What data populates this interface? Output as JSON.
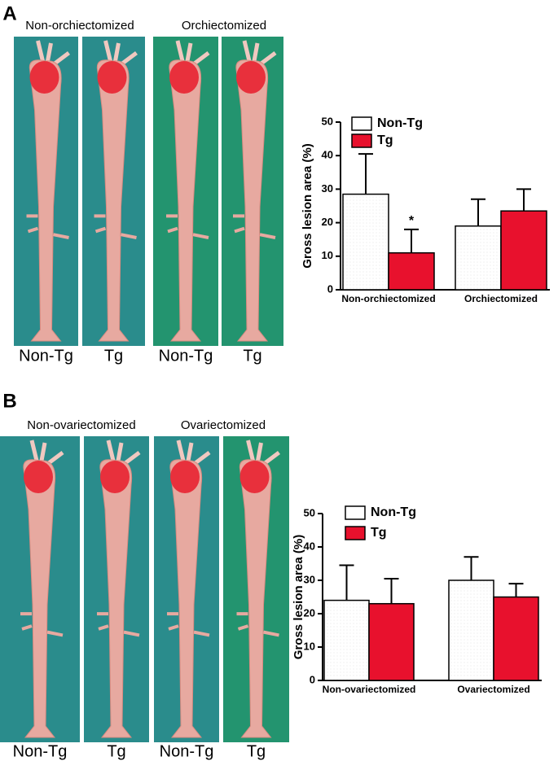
{
  "panels": [
    {
      "label": "A",
      "groups": [
        "Non-orchiectomized",
        "Orchiectomized"
      ],
      "photos": [
        "Non-Tg",
        "Tg",
        "Non-Tg",
        "Tg"
      ]
    },
    {
      "label": "B",
      "groups": [
        "Non-ovariectomized",
        "Ovariectomized"
      ],
      "photos": [
        "Non-Tg",
        "Tg",
        "Non-Tg",
        "Tg"
      ]
    }
  ],
  "chart_data": [
    {
      "type": "bar",
      "y_label": "Gross lesion area (%)",
      "categories": [
        "Non-orchiectomized",
        "Orchiectomized"
      ],
      "series": [
        {
          "name": "Non-Tg",
          "color": "#ffffff",
          "values": [
            28.5,
            19
          ],
          "errors": [
            12,
            8
          ]
        },
        {
          "name": "Tg",
          "color": "#e8112d",
          "values": [
            11,
            23.5
          ],
          "errors": [
            7,
            6.5
          ]
        }
      ],
      "annotations": [
        {
          "text": "*",
          "series": "Tg",
          "category": "Non-orchiectomized"
        }
      ],
      "ylim": [
        0,
        50
      ],
      "yticks": [
        0,
        10,
        20,
        30,
        40,
        50
      ]
    },
    {
      "type": "bar",
      "y_label": "Gross lesion area (%)",
      "categories": [
        "Non-ovariectomized",
        "Ovariectomized"
      ],
      "series": [
        {
          "name": "Non-Tg",
          "color": "#ffffff",
          "values": [
            24,
            30
          ],
          "errors": [
            10.5,
            7
          ]
        },
        {
          "name": "Tg",
          "color": "#e8112d",
          "values": [
            23,
            25
          ],
          "errors": [
            7.5,
            4
          ]
        }
      ],
      "ylim": [
        0,
        50
      ],
      "yticks": [
        0,
        10,
        20,
        30,
        40,
        50
      ]
    }
  ]
}
